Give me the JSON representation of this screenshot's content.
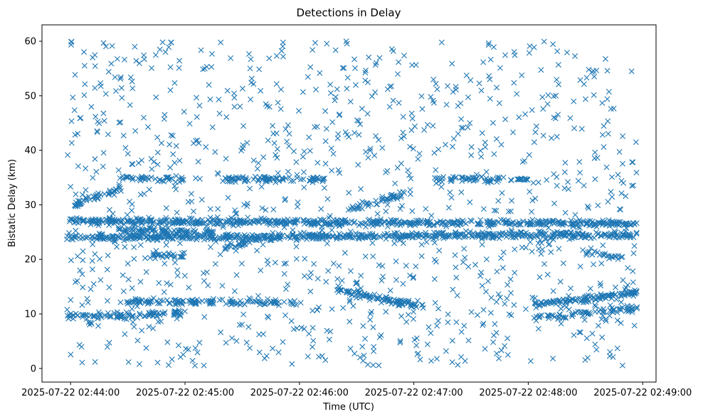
{
  "chart_data": {
    "type": "scatter",
    "title": "Detections in Delay",
    "xlabel": "Time (UTC)",
    "ylabel": "Bistatic Delay (km)",
    "marker": "x",
    "color": "#1f77b4",
    "xlim_seconds_after_02_43_45": [
      0,
      322
    ],
    "ylim": [
      -2.5,
      63
    ],
    "x_ticks": [
      {
        "label": "2025-07-22 02:44:00",
        "seconds": 15
      },
      {
        "label": "2025-07-22 02:45:00",
        "seconds": 75
      },
      {
        "label": "2025-07-22 02:46:00",
        "seconds": 135
      },
      {
        "label": "2025-07-22 02:47:00",
        "seconds": 195
      },
      {
        "label": "2025-07-22 02:48:00",
        "seconds": 255
      },
      {
        "label": "2025-07-22 02:49:00",
        "seconds": 315
      }
    ],
    "y_ticks": [
      0,
      10,
      20,
      30,
      40,
      50,
      60
    ],
    "data_time_range_seconds": [
      13,
      312
    ],
    "series": [
      {
        "name": "band-27km",
        "x_start": 13,
        "x_end": 312,
        "y_start": 27.0,
        "y_end": 26.5,
        "density": 1.0
      },
      {
        "name": "band-24km",
        "x_start": 13,
        "x_end": 312,
        "y_start": 24.0,
        "y_end": 24.5,
        "density": 1.0
      },
      {
        "name": "band-25_5km",
        "x_start": 40,
        "x_end": 90,
        "y_start": 25.5,
        "y_end": 25.0,
        "density": 0.8
      },
      {
        "name": "band-35km",
        "x_start": 40,
        "x_end": 75,
        "y_start": 34.7,
        "y_end": 34.7,
        "density": 0.6
      },
      {
        "name": "band-35km-b",
        "x_start": 95,
        "x_end": 150,
        "y_start": 34.7,
        "y_end": 34.7,
        "density": 0.7
      },
      {
        "name": "band-35km-c",
        "x_start": 205,
        "x_end": 255,
        "y_start": 34.7,
        "y_end": 34.7,
        "density": 0.6
      },
      {
        "name": "rise-30-33km",
        "x_start": 17,
        "x_end": 42,
        "y_start": 30.0,
        "y_end": 33.0,
        "density": 0.9
      },
      {
        "name": "rise-22-24km",
        "x_start": 95,
        "x_end": 115,
        "y_start": 22.0,
        "y_end": 24.0,
        "density": 0.8
      },
      {
        "name": "rise-29-32km",
        "x_start": 160,
        "x_end": 190,
        "y_start": 29.0,
        "y_end": 32.0,
        "density": 0.7
      },
      {
        "name": "band-12km-a",
        "x_start": 40,
        "x_end": 90,
        "y_start": 12.2,
        "y_end": 12.2,
        "density": 0.8
      },
      {
        "name": "band-12km-b",
        "x_start": 95,
        "x_end": 135,
        "y_start": 12.0,
        "y_end": 12.0,
        "density": 0.5
      },
      {
        "name": "band-14-11km",
        "x_start": 153,
        "x_end": 200,
        "y_start": 14.5,
        "y_end": 11.3,
        "density": 1.0
      },
      {
        "name": "band-12-14km",
        "x_start": 258,
        "x_end": 312,
        "y_start": 11.8,
        "y_end": 13.8,
        "density": 1.0
      },
      {
        "name": "band-10km-a",
        "x_start": 13,
        "x_end": 28,
        "y_start": 9.7,
        "y_end": 9.7,
        "density": 0.6
      },
      {
        "name": "band-10km-b",
        "x_start": 27,
        "x_end": 45,
        "y_start": 9.6,
        "y_end": 9.6,
        "density": 0.8
      },
      {
        "name": "band-10km-c",
        "x_start": 45,
        "x_end": 75,
        "y_start": 9.6,
        "y_end": 10.3,
        "density": 0.8
      },
      {
        "name": "band-10km-d",
        "x_start": 258,
        "x_end": 275,
        "y_start": 9.5,
        "y_end": 9.5,
        "density": 0.6
      },
      {
        "name": "band-10km-e",
        "x_start": 277,
        "x_end": 312,
        "y_start": 10.0,
        "y_end": 11.0,
        "density": 0.7
      },
      {
        "name": "band-21km",
        "x_start": 55,
        "x_end": 75,
        "y_start": 21.0,
        "y_end": 20.5,
        "density": 0.6
      },
      {
        "name": "band-21km-b",
        "x_start": 285,
        "x_end": 305,
        "y_start": 21.0,
        "y_end": 20.5,
        "density": 0.6
      }
    ],
    "background_noise": {
      "count": 1100,
      "y_range": [
        0.5,
        60
      ],
      "x_range": [
        13,
        312
      ],
      "seed": 7
    }
  }
}
